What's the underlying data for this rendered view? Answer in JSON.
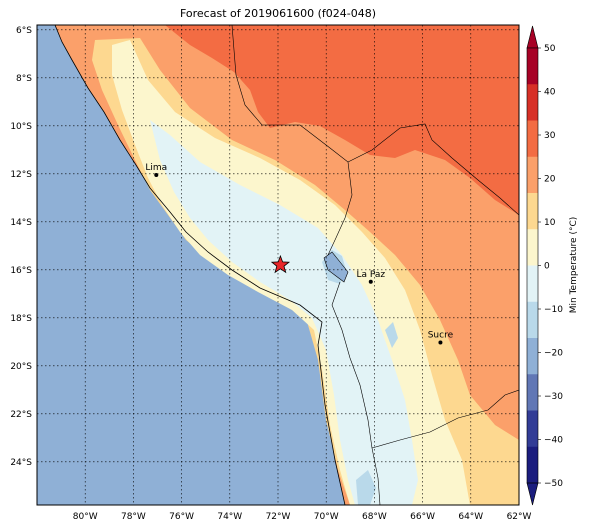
{
  "map": {
    "title": "Forecast of 2019061600 (f024-048)",
    "lat_labels": [
      "6°S",
      "8°S",
      "10°S",
      "12°S",
      "14°S",
      "16°S",
      "18°S",
      "20°S",
      "22°S",
      "24°S"
    ],
    "lon_labels": [
      "80°W",
      "78°W",
      "76°W",
      "74°W",
      "72°W",
      "70°W",
      "68°W",
      "66°W",
      "64°W",
      "62°W"
    ],
    "extent": {
      "lon_min": -82,
      "lon_max": -62,
      "lat_min": -25.8,
      "lat_max": -5.8
    },
    "cities": [
      {
        "name": "Lima",
        "lon": -77.05,
        "lat": -12.05
      },
      {
        "name": "La Paz",
        "lon": -68.15,
        "lat": -16.5
      },
      {
        "name": "Sucre",
        "lon": -65.26,
        "lat": -19.03
      }
    ],
    "marker": {
      "symbol": "star",
      "lon": -71.9,
      "lat": -15.8,
      "color": "#e8262a"
    },
    "colors": {
      "ocean": "#8fb0d6",
      "lvl_30_40": "#f36c43",
      "lvl_20_30": "#fba06a",
      "lvl_10_20": "#fdd890",
      "lvl_0_10": "#fcf6cd",
      "lvl_m10_0": "#e2f3f6",
      "lvl_m20_m10": "#b9d9ea",
      "lvl_m30_m20": "#8fb0d6"
    }
  },
  "colorbar": {
    "label": "Min Temperature (°C)",
    "ticks": [
      "50",
      "40",
      "30",
      "20",
      "10",
      "0",
      "−10",
      "−20",
      "−30",
      "−40",
      "−50"
    ],
    "colors": [
      "#a70226",
      "#d73027",
      "#f36c43",
      "#fba06a",
      "#fdd890",
      "#fcf6cd",
      "#e2f3f6",
      "#b9d9ea",
      "#8fb0d6",
      "#6177b5",
      "#323c96",
      "#1b1d7e"
    ]
  }
}
